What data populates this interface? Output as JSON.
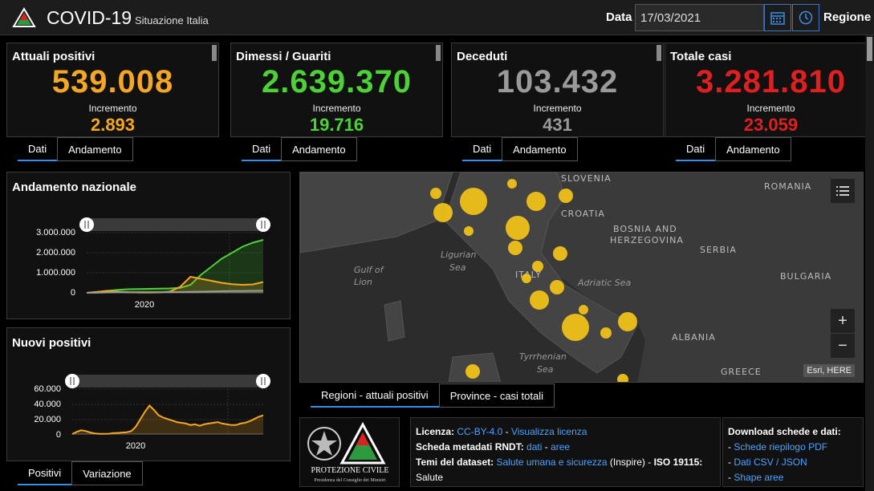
{
  "header": {
    "title": "COVID-19",
    "subtitle": "Situazione Italia",
    "date_label": "Data",
    "date_value": "17/03/2021",
    "region_label": "Regione"
  },
  "cards": [
    {
      "title": "Attuali positivi",
      "value": "539.008",
      "inc_label": "Incremento",
      "inc_value": "2.893",
      "color": "#f5a623",
      "tab_dati": "Dati",
      "tab_andamento": "Andamento"
    },
    {
      "title": "Dimessi / Guariti",
      "value": "2.639.370",
      "inc_label": "Incremento",
      "inc_value": "19.716",
      "color": "#4cd137",
      "tab_dati": "Dati",
      "tab_andamento": "Andamento"
    },
    {
      "title": "Deceduti",
      "value": "103.432",
      "inc_label": "Incremento",
      "inc_value": "431",
      "color": "#9a9a9a",
      "tab_dati": "Dati",
      "tab_andamento": "Andamento"
    },
    {
      "title": "Totale casi",
      "value": "3.281.810",
      "inc_label": "Incremento",
      "inc_value": "23.059",
      "color": "#e02020",
      "tab_dati": "Dati",
      "tab_andamento": "Andamento"
    }
  ],
  "chart_data": [
    {
      "type": "line",
      "title": "Andamento nazionale",
      "x_tick": "2020",
      "y_ticks": [
        "3.000.000",
        "2.000.000",
        "1.000.000",
        "0"
      ],
      "ylim": [
        0,
        3000000
      ],
      "series": [
        {
          "color": "#4cd137",
          "values": [
            0,
            50000,
            100000,
            150000,
            180000,
            190000,
            200000,
            210000,
            220000,
            250000,
            400000,
            900000,
            1300000,
            1700000,
            2000000,
            2300000,
            2500000,
            2640000
          ]
        },
        {
          "color": "#f5a623",
          "values": [
            0,
            40000,
            100000,
            60000,
            30000,
            15000,
            15000,
            20000,
            60000,
            300000,
            800000,
            700000,
            600000,
            500000,
            430000,
            400000,
            420000,
            540000
          ]
        },
        {
          "color": "#9a9a9a",
          "values": [
            0,
            5000,
            20000,
            30000,
            34000,
            35000,
            35500,
            36000,
            37000,
            40000,
            50000,
            60000,
            70000,
            80000,
            88000,
            94000,
            99000,
            103000
          ]
        }
      ]
    },
    {
      "type": "area",
      "title": "Nuovi positivi",
      "x_tick": "2020",
      "y_ticks": [
        "60.000",
        "40.000",
        "20.000",
        "0"
      ],
      "ylim": [
        0,
        60000
      ],
      "series": [
        {
          "color": "#f5a623",
          "values": [
            0,
            3000,
            5000,
            4000,
            2000,
            800,
            300,
            300,
            400,
            1200,
            1500,
            2000,
            2500,
            4000,
            10000,
            20000,
            30000,
            38000,
            32000,
            25000,
            22000,
            20000,
            18000,
            16000,
            15000,
            14000,
            12000,
            13000,
            11000,
            13000,
            14000,
            15000,
            16000,
            14000,
            13000,
            12000,
            12000,
            14000,
            15000,
            17000,
            20000,
            23000,
            25000
          ]
        }
      ]
    }
  ],
  "panels": {
    "nuovi_tab_positivi": "Positivi",
    "nuovi_tab_variazione": "Variazione"
  },
  "map": {
    "labels": {
      "slovenia": "SLOVENIA",
      "croatia": "CROATIA",
      "romania": "ROMANIA",
      "bosnia1": "BOSNIA AND",
      "bosnia2": "HERZEGOVINA",
      "serbia": "SERBIA",
      "bulgaria": "BULGARIA",
      "italy": "ITALY",
      "albania": "ALBANIA",
      "greece": "GREECE",
      "gulf1": "Gulf of",
      "gulf2": "Lion",
      "ligurian1": "Ligurian",
      "ligurian2": "Sea",
      "adriatic": "Adriatic Sea",
      "tyrrhenian1": "Tyrrhenian",
      "tyrrhenian2": "Sea"
    },
    "attribution": "Esri, HERE",
    "tab_regioni": "Regioni - attuali positivi",
    "tab_province": "Province - casi totali",
    "bubble_color": "#f5c518"
  },
  "footer": {
    "logo_text1": "PROTEZIONE CIVILE",
    "logo_text2": "Presidenza del Consiglio dei Ministri",
    "licenza_label": "Licenza:",
    "licenza_link": "CC-BY-4.0",
    "licenza_sep": " - ",
    "licenza_view": "Visualizza licenza",
    "scheda_label": "Scheda metadati RNDT:",
    "scheda_dati": "dati",
    "scheda_sep": " - ",
    "scheda_aree": "aree",
    "temi_label": "Temi del dataset:",
    "temi_link": "Salute umana e sicurezza",
    "temi_rest": " (Inspire) - ",
    "temi_iso": "ISO 19115:",
    "temi_salute": "Salute",
    "download_title": "Download schede e dati:",
    "dl_pdf": "Schede riepilogo PDF",
    "dl_csv": "Dati CSV / JSON",
    "dl_shape": "Shape aree",
    "dash": "- "
  }
}
